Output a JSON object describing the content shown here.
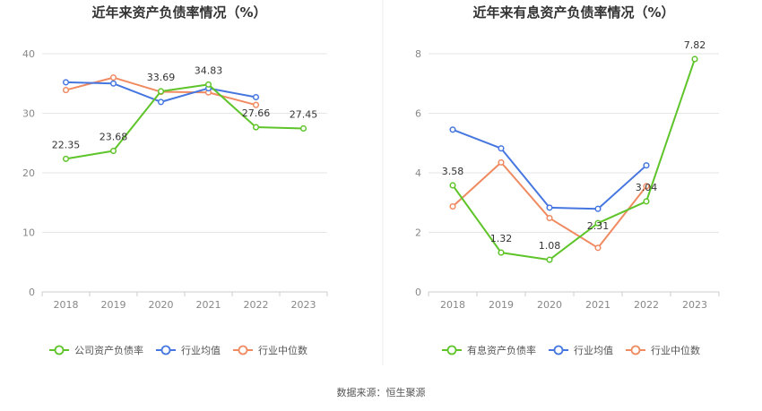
{
  "footer": "数据来源：恒生聚源",
  "chart_data": [
    {
      "type": "line",
      "title": "近年来资产负债率情况（%）",
      "categories": [
        "2018",
        "2019",
        "2020",
        "2021",
        "2022",
        "2023"
      ],
      "ylim": [
        0,
        40
      ],
      "yticks": [
        0,
        10,
        20,
        30,
        40
      ],
      "grid": true,
      "legend_position": "bottom",
      "series": [
        {
          "name": "公司资产负债率",
          "color": "#5ec429",
          "values": [
            22.35,
            23.68,
            33.69,
            34.83,
            27.66,
            27.45
          ],
          "show_labels": true
        },
        {
          "name": "行业均值",
          "color": "#4677e0",
          "values": [
            35.2,
            35.0,
            31.9,
            34.2,
            32.7,
            null
          ],
          "show_labels": false
        },
        {
          "name": "行业中位数",
          "color": "#f08a61",
          "values": [
            33.9,
            36.0,
            33.6,
            33.5,
            31.4,
            null
          ],
          "show_labels": false
        }
      ]
    },
    {
      "type": "line",
      "title": "近年来有息资产负债率情况（%）",
      "categories": [
        "2018",
        "2019",
        "2020",
        "2021",
        "2022",
        "2023"
      ],
      "ylim": [
        0,
        8
      ],
      "yticks": [
        0,
        2,
        4,
        6,
        8
      ],
      "grid": true,
      "legend_position": "bottom",
      "series": [
        {
          "name": "有息资产负债率",
          "color": "#5ec429",
          "values": [
            3.58,
            1.32,
            1.08,
            2.31,
            3.04,
            7.82
          ],
          "show_labels": true
        },
        {
          "name": "行业均值",
          "color": "#4677e0",
          "values": [
            5.45,
            4.82,
            2.83,
            2.79,
            4.25,
            null
          ],
          "show_labels": false
        },
        {
          "name": "行业中位数",
          "color": "#f08a61",
          "values": [
            2.87,
            4.35,
            2.48,
            1.48,
            3.55,
            null
          ],
          "show_labels": false
        }
      ]
    }
  ]
}
